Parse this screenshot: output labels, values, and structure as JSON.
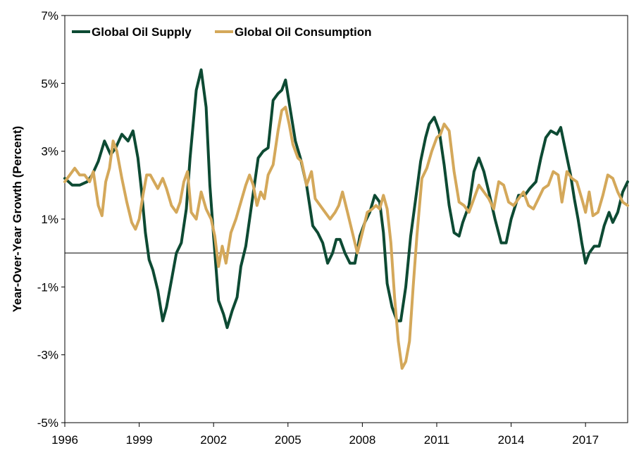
{
  "chart_data": {
    "type": "line",
    "title": "",
    "xlabel": "",
    "ylabel": "Year-Over-Year Growth (Percent)",
    "xlim": [
      1996,
      2018.7
    ],
    "ylim": [
      -5,
      7
    ],
    "x_ticks": [
      {
        "value": 1996,
        "label": "1996"
      },
      {
        "value": 1999,
        "label": "1999"
      },
      {
        "value": 2002,
        "label": "2002"
      },
      {
        "value": 2005,
        "label": "2005"
      },
      {
        "value": 2008,
        "label": "2008"
      },
      {
        "value": 2011,
        "label": "2011"
      },
      {
        "value": 2014,
        "label": "2014"
      },
      {
        "value": 2017,
        "label": "2017"
      }
    ],
    "y_ticks": [
      {
        "value": 7,
        "label": "7%"
      },
      {
        "value": 5,
        "label": "5%"
      },
      {
        "value": 3,
        "label": "3%"
      },
      {
        "value": 1,
        "label": "1%"
      },
      {
        "value": -1,
        "label": "-1%"
      },
      {
        "value": -3,
        "label": "-3%"
      },
      {
        "value": -5,
        "label": "-5%"
      }
    ],
    "zero_line": true,
    "grid": false,
    "legend_position": "top-left",
    "series": [
      {
        "name": "Global Oil Supply",
        "color": "#0d4a33",
        "x": [
          1996.0,
          1996.3,
          1996.6,
          1996.9,
          1997.1,
          1997.35,
          1997.6,
          1997.85,
          1998.05,
          1998.3,
          1998.55,
          1998.75,
          1998.95,
          1999.1,
          1999.25,
          1999.4,
          1999.55,
          1999.75,
          1999.95,
          2000.1,
          2000.3,
          2000.5,
          2000.7,
          2000.9,
          2001.05,
          2001.3,
          2001.5,
          2001.7,
          2001.85,
          2002.0,
          2002.2,
          2002.4,
          2002.55,
          2002.75,
          2002.95,
          2003.1,
          2003.3,
          2003.55,
          2003.8,
          2004.0,
          2004.2,
          2004.4,
          2004.6,
          2004.75,
          2004.9,
          2005.1,
          2005.3,
          2005.5,
          2005.75,
          2006.0,
          2006.2,
          2006.4,
          2006.6,
          2006.8,
          2006.95,
          2007.1,
          2007.3,
          2007.5,
          2007.7,
          2007.9,
          2008.1,
          2008.3,
          2008.5,
          2008.7,
          2008.85,
          2009.0,
          2009.2,
          2009.4,
          2009.55,
          2009.75,
          2009.95,
          2010.15,
          2010.35,
          2010.55,
          2010.7,
          2010.9,
          2011.1,
          2011.3,
          2011.5,
          2011.7,
          2011.9,
          2012.05,
          2012.3,
          2012.5,
          2012.7,
          2012.9,
          2013.1,
          2013.35,
          2013.6,
          2013.8,
          2014.0,
          2014.3,
          2014.55,
          2014.75,
          2015.0,
          2015.2,
          2015.4,
          2015.6,
          2015.85,
          2016.0,
          2016.2,
          2016.4,
          2016.55,
          2016.7,
          2016.85,
          2017.0,
          2017.15,
          2017.35,
          2017.55,
          2017.75,
          2017.95,
          2018.1,
          2018.3,
          2018.5,
          2018.7
        ],
        "values": [
          2.2,
          2.0,
          2.0,
          2.1,
          2.3,
          2.7,
          3.3,
          2.9,
          3.1,
          3.5,
          3.3,
          3.6,
          2.8,
          1.8,
          0.6,
          -0.2,
          -0.5,
          -1.1,
          -2.0,
          -1.6,
          -0.8,
          0.0,
          0.3,
          1.3,
          2.8,
          4.8,
          5.4,
          4.3,
          2.0,
          0.5,
          -1.4,
          -1.8,
          -2.2,
          -1.7,
          -1.3,
          -0.4,
          0.2,
          1.5,
          2.8,
          3.0,
          3.1,
          4.5,
          4.7,
          4.8,
          5.1,
          4.2,
          3.3,
          2.8,
          2.0,
          0.8,
          0.6,
          0.3,
          -0.3,
          0.0,
          0.4,
          0.4,
          0.0,
          -0.3,
          -0.3,
          0.5,
          0.9,
          1.2,
          1.7,
          1.5,
          0.6,
          -0.9,
          -1.6,
          -2.0,
          -2.0,
          -1.0,
          0.5,
          1.6,
          2.7,
          3.4,
          3.8,
          4.0,
          3.6,
          2.6,
          1.4,
          0.6,
          0.5,
          0.9,
          1.4,
          2.4,
          2.8,
          2.4,
          1.8,
          1.0,
          0.3,
          0.3,
          1.0,
          1.7,
          1.7,
          1.9,
          2.1,
          2.8,
          3.4,
          3.6,
          3.5,
          3.7,
          3.0,
          2.3,
          1.6,
          1.0,
          0.3,
          -0.3,
          0.0,
          0.2,
          0.2,
          0.8,
          1.2,
          0.9,
          1.2,
          1.8,
          2.1
        ]
      },
      {
        "name": "Global Oil Consumption",
        "color": "#d4a85a",
        "x": [
          1996.0,
          1996.2,
          1996.4,
          1996.6,
          1996.8,
          1997.0,
          1997.15,
          1997.35,
          1997.5,
          1997.65,
          1997.8,
          1997.95,
          1998.1,
          1998.3,
          1998.5,
          1998.7,
          1998.85,
          1999.0,
          1999.15,
          1999.3,
          1999.45,
          1999.6,
          1999.75,
          1999.95,
          2000.1,
          2000.3,
          2000.5,
          2000.65,
          2000.8,
          2000.95,
          2001.1,
          2001.3,
          2001.5,
          2001.7,
          2001.9,
          2002.05,
          2002.2,
          2002.35,
          2002.5,
          2002.7,
          2002.9,
          2003.1,
          2003.3,
          2003.45,
          2003.6,
          2003.75,
          2003.9,
          2004.05,
          2004.2,
          2004.4,
          2004.6,
          2004.75,
          2004.9,
          2005.05,
          2005.2,
          2005.4,
          2005.55,
          2005.75,
          2005.95,
          2006.1,
          2006.3,
          2006.5,
          2006.7,
          2006.9,
          2007.05,
          2007.2,
          2007.4,
          2007.6,
          2007.8,
          2008.0,
          2008.2,
          2008.4,
          2008.55,
          2008.7,
          2008.85,
          2009.0,
          2009.15,
          2009.3,
          2009.45,
          2009.6,
          2009.75,
          2009.9,
          2010.05,
          2010.2,
          2010.4,
          2010.6,
          2010.8,
          2011.0,
          2011.15,
          2011.3,
          2011.5,
          2011.7,
          2011.9,
          2012.1,
          2012.3,
          2012.5,
          2012.7,
          2012.9,
          2013.1,
          2013.3,
          2013.5,
          2013.7,
          2013.9,
          2014.1,
          2014.3,
          2014.5,
          2014.7,
          2014.9,
          2015.1,
          2015.3,
          2015.5,
          2015.7,
          2015.9,
          2016.05,
          2016.25,
          2016.45,
          2016.65,
          2016.85,
          2017.0,
          2017.15,
          2017.3,
          2017.5,
          2017.7,
          2017.9,
          2018.1,
          2018.3,
          2018.5,
          2018.7
        ],
        "values": [
          2.1,
          2.3,
          2.5,
          2.3,
          2.3,
          2.1,
          2.4,
          1.4,
          1.1,
          2.1,
          2.5,
          3.3,
          3.0,
          2.2,
          1.5,
          0.9,
          0.7,
          1.0,
          1.7,
          2.3,
          2.3,
          2.1,
          1.9,
          2.2,
          1.9,
          1.4,
          1.2,
          1.5,
          2.1,
          2.4,
          1.2,
          1.0,
          1.8,
          1.3,
          1.0,
          0.5,
          -0.4,
          0.2,
          -0.3,
          0.6,
          1.0,
          1.5,
          2.0,
          2.3,
          2.0,
          1.4,
          1.8,
          1.6,
          2.3,
          2.6,
          3.6,
          4.2,
          4.3,
          3.8,
          3.2,
          2.8,
          2.7,
          2.0,
          2.4,
          1.6,
          1.4,
          1.2,
          1.0,
          1.2,
          1.4,
          1.8,
          1.2,
          0.6,
          0.0,
          0.6,
          1.2,
          1.3,
          1.4,
          1.3,
          1.7,
          1.3,
          0.3,
          -1.3,
          -2.6,
          -3.4,
          -3.2,
          -2.6,
          -1.0,
          0.5,
          2.2,
          2.5,
          3.0,
          3.4,
          3.5,
          3.8,
          3.6,
          2.4,
          1.5,
          1.4,
          1.2,
          1.6,
          2.0,
          1.8,
          1.6,
          1.3,
          2.1,
          2.0,
          1.5,
          1.4,
          1.6,
          1.8,
          1.4,
          1.3,
          1.6,
          1.9,
          2.0,
          2.4,
          2.3,
          1.5,
          2.4,
          2.2,
          2.1,
          1.6,
          1.2,
          1.8,
          1.1,
          1.2,
          1.7,
          2.3,
          2.2,
          1.8,
          1.5,
          1.4
        ]
      }
    ]
  }
}
